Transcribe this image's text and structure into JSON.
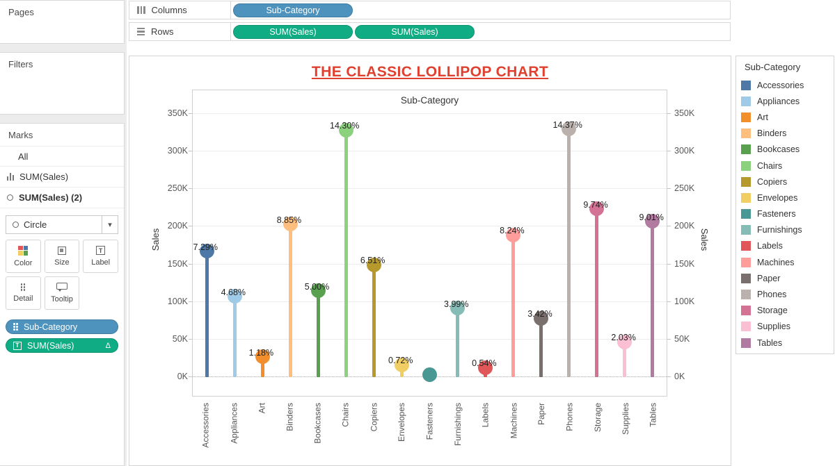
{
  "ui": {
    "caret": "▾",
    "label_glyph": "T",
    "delta": "Δ"
  },
  "colors": {
    "dimension_pill": "#4E93BE",
    "dimension_pill_border": "#3D7BA2",
    "measure_pill": "#10AC84",
    "measure_pill_border": "#0B9271",
    "title_red": "#E0402F",
    "color_icon_swatches": [
      "#E15759",
      "#4E79A7",
      "#F1CE63",
      "#59A14F"
    ]
  },
  "sidebar": {
    "pages_label": "Pages",
    "filters_label": "Filters",
    "marks": {
      "label": "Marks",
      "tabs": [
        "All",
        "SUM(Sales)",
        "SUM(Sales) (2)"
      ],
      "mark_type": "Circle",
      "buttons": [
        "Color",
        "Size",
        "Label",
        "Detail",
        "Tooltip"
      ],
      "pills": [
        {
          "label": "Sub-Category",
          "type": "dimension",
          "icon": "detail-dots-icon",
          "suffix": ""
        },
        {
          "label": "SUM(Sales)",
          "type": "measure",
          "icon": "label-T-icon",
          "suffix": "Δ"
        }
      ]
    }
  },
  "shelves": {
    "columns": {
      "label": "Columns",
      "pills": [
        {
          "label": "Sub-Category",
          "type": "dimension"
        }
      ]
    },
    "rows": {
      "label": "Rows",
      "pills": [
        {
          "label": "SUM(Sales)",
          "type": "measure"
        },
        {
          "label": "SUM(Sales)",
          "type": "measure"
        }
      ]
    }
  },
  "chart_data": {
    "type": "lollipop (dual-axis bar + circle)",
    "title": "THE CLASSIC LOLLIPOP CHART",
    "column_header": "Sub-Category",
    "ylabel_left": "Sales",
    "ylabel_right": "Sales",
    "ylim_k": [
      0,
      350
    ],
    "y_tick_step_k": 50,
    "y_ticks": [
      "0K",
      "50K",
      "100K",
      "150K",
      "200K",
      "250K",
      "300K",
      "350K"
    ],
    "grid": "horizontal, dotted zero line",
    "legend_position": "right",
    "categories": [
      "Accessories",
      "Appliances",
      "Art",
      "Binders",
      "Bookcases",
      "Chairs",
      "Copiers",
      "Envelopes",
      "Fasteners",
      "Furnishings",
      "Labels",
      "Machines",
      "Paper",
      "Phones",
      "Storage",
      "Supplies",
      "Tables"
    ],
    "series": [
      {
        "name": "SUM(Sales) (thousands)",
        "values": [
          167.4,
          107.5,
          27.1,
          203.4,
          114.9,
          328.4,
          149.5,
          16.5,
          3.0,
          91.7,
          12.5,
          189.2,
          78.5,
          330.0,
          223.8,
          46.7,
          207.0
        ]
      },
      {
        "name": "% of Total Sales (labels)",
        "values": [
          "7.29%",
          "4.68%",
          "1.18%",
          "8.85%",
          "5.00%",
          "14.30%",
          "6.51%",
          "0.72%",
          "",
          "3.99%",
          "0.54%",
          "8.24%",
          "3.42%",
          "14.37%",
          "9.74%",
          "2.03%",
          "9.01%"
        ]
      }
    ],
    "colors": [
      "#4E79A7",
      "#A0CBE8",
      "#F28E2B",
      "#FFBE7D",
      "#59A14F",
      "#8CD17D",
      "#B6992D",
      "#F1CE63",
      "#499894",
      "#86BCB6",
      "#E15759",
      "#FF9D9A",
      "#79706E",
      "#BAB0AC",
      "#D37295",
      "#FABFD2",
      "#B07AA1"
    ]
  },
  "legend": {
    "title": "Sub-Category",
    "items": [
      {
        "label": "Accessories",
        "color": "#4E79A7"
      },
      {
        "label": "Appliances",
        "color": "#A0CBE8"
      },
      {
        "label": "Art",
        "color": "#F28E2B"
      },
      {
        "label": "Binders",
        "color": "#FFBE7D"
      },
      {
        "label": "Bookcases",
        "color": "#59A14F"
      },
      {
        "label": "Chairs",
        "color": "#8CD17D"
      },
      {
        "label": "Copiers",
        "color": "#B6992D"
      },
      {
        "label": "Envelopes",
        "color": "#F1CE63"
      },
      {
        "label": "Fasteners",
        "color": "#499894"
      },
      {
        "label": "Furnishings",
        "color": "#86BCB6"
      },
      {
        "label": "Labels",
        "color": "#E15759"
      },
      {
        "label": "Machines",
        "color": "#FF9D9A"
      },
      {
        "label": "Paper",
        "color": "#79706E"
      },
      {
        "label": "Phones",
        "color": "#BAB0AC"
      },
      {
        "label": "Storage",
        "color": "#D37295"
      },
      {
        "label": "Supplies",
        "color": "#FABFD2"
      },
      {
        "label": "Tables",
        "color": "#B07AA1"
      }
    ]
  }
}
